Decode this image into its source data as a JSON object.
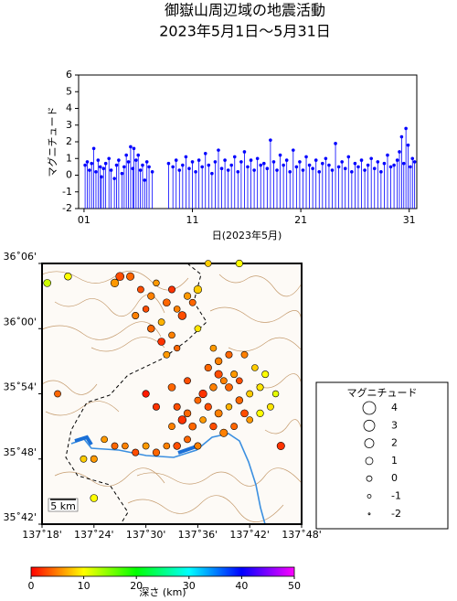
{
  "chart_data": [
    {
      "type": "stem",
      "title": "御嶽山周辺域の地震活動",
      "subtitle": "2023年5月1日～5月31日",
      "xlabel": "日(2023年5月)",
      "ylabel": "マグニチュード",
      "color": "#0000ff",
      "xlim": [
        0.5,
        31.7
      ],
      "xticks": [
        {
          "value": 1,
          "label": "01"
        },
        11,
        21,
        31
      ],
      "ylim": [
        -2,
        6
      ],
      "yticks": [
        -2,
        -1,
        0,
        1,
        2,
        3,
        4,
        5,
        6
      ],
      "x": [
        1.1,
        1.3,
        1.5,
        1.7,
        1.9,
        2.1,
        2.3,
        2.5,
        2.6,
        2.8,
        3.0,
        3.3,
        3.5,
        3.8,
        4.0,
        4.2,
        4.5,
        4.7,
        4.9,
        5.1,
        5.3,
        5.5,
        5.6,
        5.8,
        6.0,
        6.2,
        6.4,
        6.6,
        6.8,
        7.0,
        7.3,
        8.8,
        9.2,
        9.5,
        9.8,
        10.1,
        10.4,
        10.7,
        11.0,
        11.3,
        11.6,
        11.9,
        12.2,
        12.5,
        12.8,
        13.1,
        13.4,
        13.7,
        14.0,
        14.3,
        14.6,
        14.9,
        15.2,
        15.5,
        15.8,
        16.1,
        16.4,
        16.7,
        17.0,
        17.3,
        17.6,
        17.9,
        18.2,
        18.5,
        18.8,
        19.1,
        19.4,
        19.7,
        20.0,
        20.3,
        20.6,
        20.9,
        21.2,
        21.5,
        21.8,
        22.1,
        22.4,
        22.7,
        23.0,
        23.3,
        23.6,
        23.9,
        24.2,
        24.5,
        24.8,
        25.1,
        25.4,
        25.7,
        26.0,
        26.3,
        26.6,
        26.9,
        27.2,
        27.5,
        27.8,
        28.1,
        28.4,
        28.7,
        29.0,
        29.3,
        29.6,
        29.9,
        30.1,
        30.3,
        30.5,
        30.7,
        30.9,
        31.1,
        31.3,
        31.5
      ],
      "values": [
        0.6,
        0.8,
        0.3,
        0.7,
        1.6,
        0.2,
        0.9,
        0.5,
        -0.1,
        0.4,
        0.7,
        1.0,
        0.3,
        -0.2,
        0.6,
        0.9,
        0.1,
        0.5,
        1.2,
        0.8,
        1.7,
        0.4,
        1.6,
        0.9,
        1.2,
        0.3,
        0.6,
        -0.3,
        0.8,
        0.5,
        0.2,
        0.7,
        0.5,
        0.9,
        0.3,
        0.6,
        1.1,
        0.4,
        0.8,
        0.2,
        0.9,
        0.5,
        1.3,
        0.6,
        0.1,
        0.8,
        1.5,
        0.4,
        0.9,
        0.3,
        0.6,
        1.1,
        0.2,
        0.8,
        1.4,
        0.5,
        0.9,
        0.3,
        1.0,
        0.6,
        0.7,
        0.4,
        2.1,
        0.8,
        0.3,
        1.2,
        0.6,
        0.9,
        0.2,
        1.5,
        0.5,
        0.8,
        0.3,
        1.1,
        0.6,
        0.4,
        0.9,
        0.2,
        0.7,
        1.0,
        0.6,
        0.3,
        1.9,
        0.5,
        0.8,
        0.4,
        1.1,
        0.2,
        0.7,
        0.5,
        0.9,
        0.3,
        0.6,
        1.0,
        0.4,
        0.8,
        0.2,
        0.7,
        1.2,
        0.5,
        0.6,
        0.9,
        1.4,
        2.3,
        0.7,
        2.8,
        1.8,
        0.5,
        1.0,
        0.8
      ]
    },
    {
      "type": "scatter",
      "xlim": [
        137.3,
        137.8
      ],
      "xticks": [
        {
          "value": 137.3,
          "label": "137˚18'"
        },
        {
          "value": 137.4,
          "label": "137˚24'"
        },
        {
          "value": 137.5,
          "label": "137˚30'"
        },
        {
          "value": 137.6,
          "label": "137˚36'"
        },
        {
          "value": 137.7,
          "label": "137˚42'"
        },
        {
          "value": 137.8,
          "label": "137˚48'"
        }
      ],
      "ylim": [
        35.7,
        36.1
      ],
      "yticks": [
        {
          "value": 35.7,
          "label": "35˚42'"
        },
        {
          "value": 35.8,
          "label": "35˚48'"
        },
        {
          "value": 35.9,
          "label": "35˚54'"
        },
        {
          "value": 36.0,
          "label": "36˚00'"
        },
        {
          "value": 36.1,
          "label": "36˚06'"
        }
      ],
      "scale_label": "5 km",
      "x": [
        137.47,
        137.49,
        137.51,
        137.52,
        137.54,
        137.55,
        137.56,
        137.57,
        137.53,
        137.51,
        137.55,
        137.58,
        137.6,
        137.59,
        137.5,
        137.48,
        137.53,
        137.56,
        137.54,
        137.6,
        137.44,
        137.45,
        137.35,
        137.62,
        137.68,
        137.62,
        137.64,
        137.65,
        137.66,
        137.67,
        137.68,
        137.63,
        137.61,
        137.6,
        137.62,
        137.64,
        137.66,
        137.68,
        137.7,
        137.72,
        137.69,
        137.7,
        137.72,
        137.74,
        137.75,
        137.58,
        137.57,
        137.55,
        137.56,
        137.59,
        137.61,
        137.63,
        137.65,
        137.67,
        137.64,
        137.66,
        137.63,
        137.58,
        137.55,
        137.52,
        137.5,
        137.71,
        137.69,
        137.73,
        137.76,
        137.44,
        137.46,
        137.48,
        137.5,
        137.52,
        137.54,
        137.56,
        137.58,
        137.6,
        137.42,
        137.38,
        137.4,
        137.33,
        137.31,
        137.4
      ],
      "values": [
        36.08,
        36.06,
        36.05,
        36.07,
        36.04,
        36.06,
        36.03,
        36.02,
        36.01,
        36.0,
        35.99,
        36.05,
        36.06,
        36.04,
        36.03,
        36.02,
        35.98,
        35.97,
        35.96,
        36.0,
        36.07,
        36.08,
        36.08,
        36.1,
        36.1,
        35.94,
        35.93,
        35.92,
        35.91,
        35.93,
        35.92,
        35.91,
        35.9,
        35.89,
        35.88,
        35.87,
        35.88,
        35.89,
        35.9,
        35.91,
        35.87,
        35.86,
        35.87,
        35.88,
        35.9,
        35.87,
        35.86,
        35.85,
        35.88,
        35.85,
        35.86,
        35.85,
        35.84,
        35.85,
        35.95,
        35.96,
        35.97,
        35.92,
        35.91,
        35.88,
        35.9,
        35.94,
        35.96,
        35.93,
        35.82,
        35.82,
        35.82,
        35.81,
        35.82,
        35.81,
        35.82,
        35.82,
        35.83,
        35.82,
        35.83,
        35.8,
        35.8,
        35.9,
        36.07,
        35.74
      ],
      "sizes": [
        1.2,
        0.6,
        0.8,
        0.4,
        1.0,
        0.7,
        0.5,
        1.4,
        0.6,
        0.9,
        0.5,
        0.8,
        1.3,
        0.6,
        0.4,
        0.7,
        1.0,
        0.3,
        0.6,
        0.5,
        1.3,
        1.5,
        0.9,
        0.5,
        0.8,
        0.8,
        1.2,
        0.6,
        1.0,
        0.7,
        0.5,
        0.9,
        1.3,
        0.6,
        0.8,
        1.1,
        0.4,
        0.9,
        0.6,
        0.7,
        1.0,
        0.5,
        0.8,
        0.6,
        0.4,
        0.9,
        1.4,
        0.6,
        0.7,
        1.0,
        0.5,
        0.8,
        1.2,
        0.6,
        0.9,
        0.7,
        0.5,
        0.6,
        1.0,
        0.7,
        0.8,
        0.5,
        0.6,
        0.7,
        1.2,
        0.6,
        0.5,
        0.7,
        0.6,
        0.8,
        0.5,
        0.9,
        0.6,
        0.7,
        0.5,
        0.6,
        0.7,
        0.6,
        1.0,
        1.0
      ],
      "depths": [
        4,
        3,
        5,
        6,
        4,
        2,
        5,
        3,
        7,
        4,
        5,
        6,
        8,
        4,
        3,
        5,
        2,
        4,
        6,
        9,
        6,
        3,
        10,
        8,
        10,
        4,
        3,
        5,
        4,
        6,
        3,
        5,
        2,
        4,
        3,
        5,
        7,
        4,
        8,
        9,
        3,
        6,
        10,
        9,
        11,
        4,
        2,
        5,
        3,
        4,
        6,
        3,
        5,
        4,
        5,
        4,
        6,
        3,
        4,
        2,
        1,
        8,
        5,
        10,
        2,
        4,
        5,
        3,
        6,
        4,
        5,
        3,
        4,
        5,
        6,
        8,
        6,
        4,
        12,
        10
      ],
      "legend_title": "マグニチュード",
      "legend_sizes": [
        4,
        3,
        2,
        1,
        0,
        -1,
        -2
      ],
      "colorbar": {
        "title": "深さ (km)",
        "lim": [
          0,
          50
        ],
        "ticks": [
          0,
          10,
          20,
          30,
          40,
          50
        ],
        "colors": [
          "#ff0000",
          "#ffff00",
          "#00ff00",
          "#00ffff",
          "#0000ff",
          "#ff00ff"
        ]
      }
    }
  ]
}
